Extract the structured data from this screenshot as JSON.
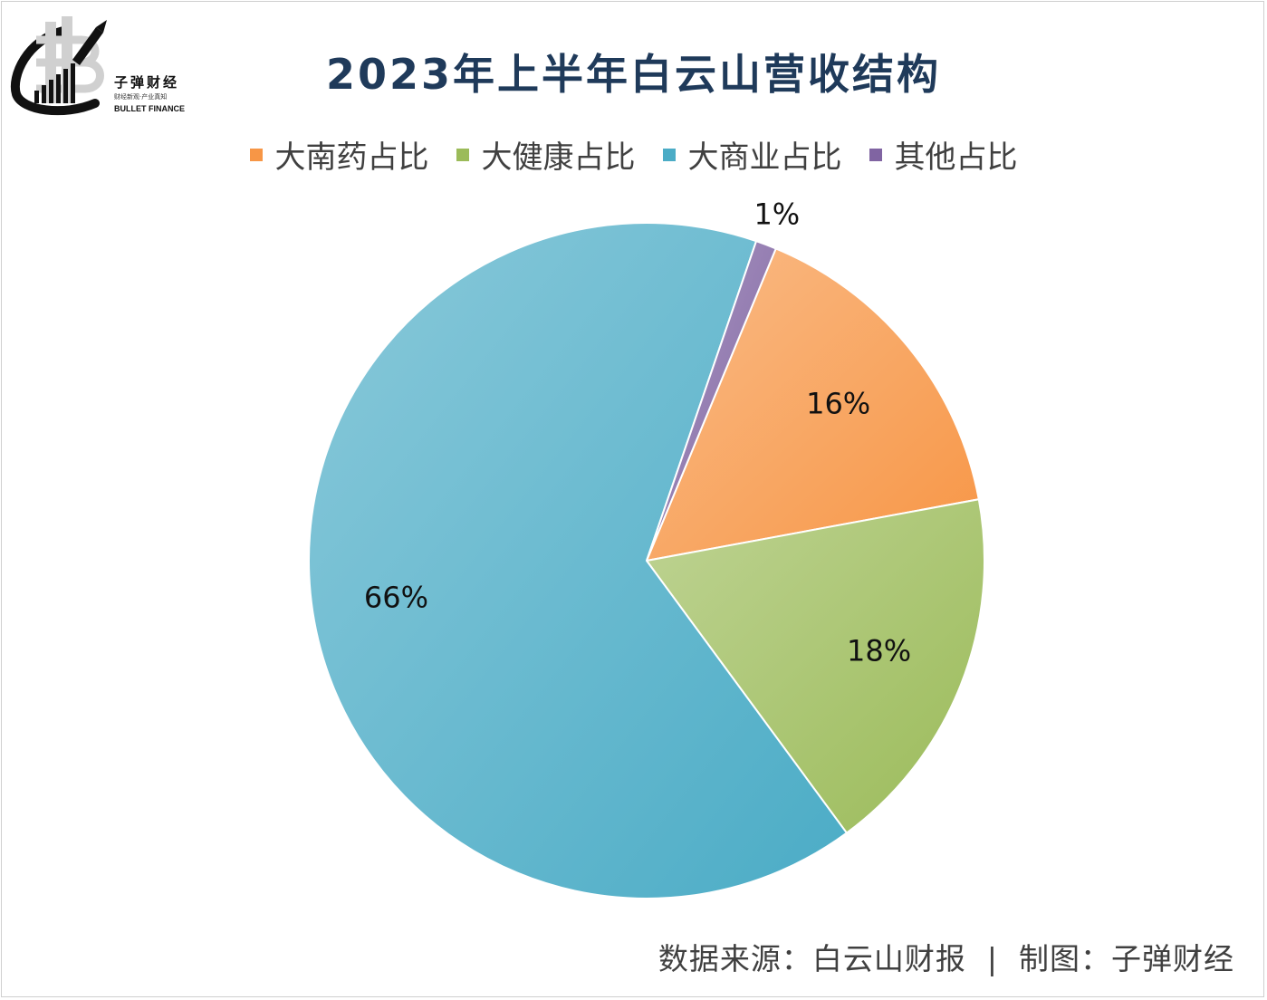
{
  "logo": {
    "name": "子弹财经",
    "slogan": "财经新观·产业真知",
    "en": "BULLET FINANCE"
  },
  "chart_data": {
    "type": "pie",
    "title": "2023年上半年白云山营收结构",
    "legend_position": "top",
    "series": [
      {
        "name": "大南药占比",
        "value": 16,
        "label": "16%",
        "color": "#f79646"
      },
      {
        "name": "大健康占比",
        "value": 18,
        "label": "18%",
        "color": "#9bbb59"
      },
      {
        "name": "大商业占比",
        "value": 66,
        "label": "66%",
        "color": "#4bacc6"
      },
      {
        "name": "其他占比",
        "value": 1,
        "label": "1%",
        "color": "#8064a2"
      }
    ]
  },
  "footer": {
    "source": "数据来源：白云山财报  |  制图：子弹财经"
  }
}
